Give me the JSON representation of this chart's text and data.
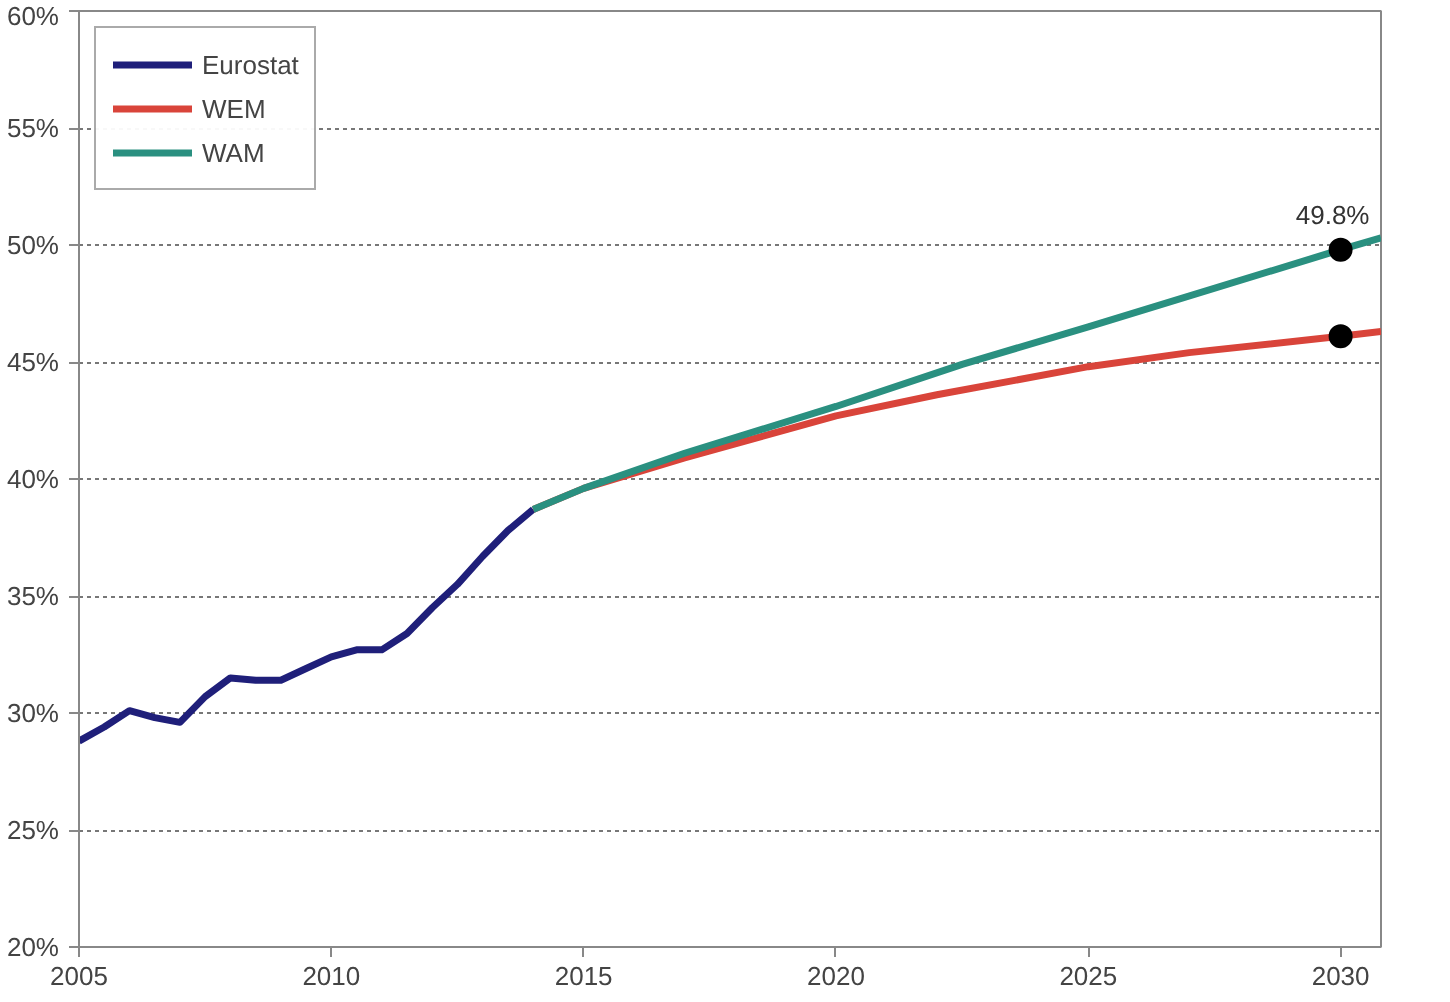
{
  "chart_data": {
    "type": "line",
    "xlim": [
      2005,
      2030.8
    ],
    "ylim": [
      20,
      60
    ],
    "xticks": [
      2005,
      2010,
      2015,
      2020,
      2025,
      2030
    ],
    "yticks": [
      {
        "value": 20,
        "label": "20%"
      },
      {
        "value": 25,
        "label": "25%"
      },
      {
        "value": 30,
        "label": "30%"
      },
      {
        "value": 35,
        "label": "35%"
      },
      {
        "value": 40,
        "label": "40%"
      },
      {
        "value": 45,
        "label": "45%"
      },
      {
        "value": 50,
        "label": "50%"
      },
      {
        "value": 55,
        "label": "55%"
      },
      {
        "value": 60,
        "label": "60%"
      }
    ],
    "grid": "y",
    "legend": "top left",
    "line_style": "solid",
    "series": [
      {
        "name": "Eurostat",
        "color": "#1f1f7a",
        "x": [
          2005,
          2005.5,
          2006,
          2006.5,
          2007,
          2007.5,
          2008,
          2008.5,
          2009,
          2009.5,
          2010,
          2010.5,
          2011,
          2011.5,
          2012,
          2012.5,
          2013,
          2013.5,
          2014
        ],
        "values": [
          28.8,
          29.4,
          30.1,
          29.8,
          29.6,
          30.7,
          31.5,
          31.4,
          31.4,
          31.9,
          32.4,
          32.7,
          32.7,
          33.4,
          34.5,
          35.5,
          36.7,
          37.8,
          38.7
        ]
      },
      {
        "name": "WEM",
        "color": "#d9443a",
        "x": [
          2014,
          2015,
          2017,
          2020,
          2022,
          2025,
          2027,
          2030,
          2030.8
        ],
        "values": [
          38.7,
          39.6,
          40.9,
          42.7,
          43.6,
          44.8,
          45.4,
          46.1,
          46.3
        ]
      },
      {
        "name": "WAM",
        "color": "#2a9080",
        "x": [
          2014,
          2015,
          2017,
          2020,
          2022.5,
          2025,
          2030,
          2030.8
        ],
        "values": [
          38.7,
          39.6,
          41.1,
          43.1,
          44.9,
          46.5,
          49.8,
          50.3
        ]
      },
      {
        "type": "scatter",
        "color": "#000000",
        "marker": "circle",
        "x": [
          2030,
          2030
        ],
        "values": [
          46.1,
          49.8
        ]
      }
    ],
    "annotations": [
      {
        "text": "49.8%",
        "x": 2030,
        "y": 49.8
      }
    ]
  }
}
